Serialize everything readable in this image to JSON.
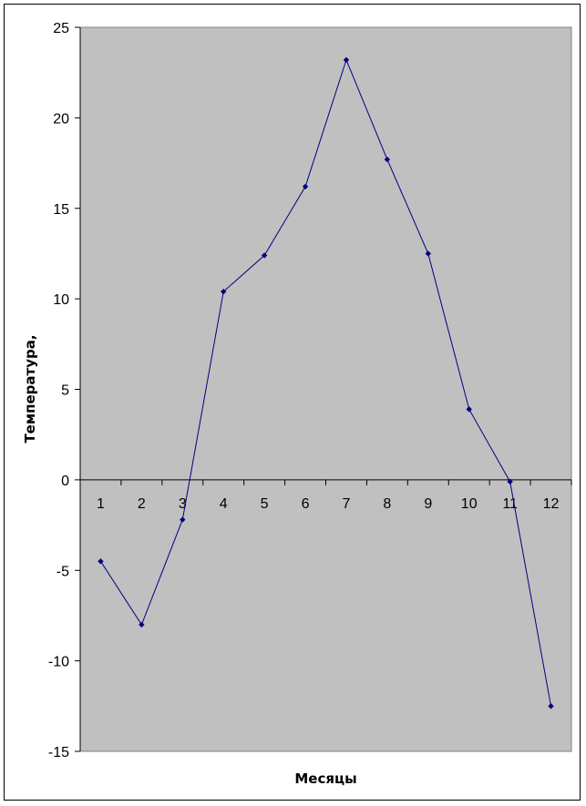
{
  "chart_data": {
    "type": "line",
    "title": "",
    "xlabel": "Месяцы",
    "ylabel": "Температура,",
    "categories": [
      "1",
      "2",
      "3",
      "4",
      "5",
      "6",
      "7",
      "8",
      "9",
      "10",
      "11",
      "12"
    ],
    "series": [
      {
        "values": [
          -4.5,
          -8.0,
          -2.2,
          10.4,
          12.4,
          16.2,
          23.2,
          17.7,
          12.5,
          3.9,
          -0.1,
          -12.5
        ]
      }
    ],
    "ylim": [
      -15,
      25
    ],
    "yticks": [
      "25",
      "20",
      "15",
      "10",
      "5",
      "0",
      "-5",
      "-10",
      "-15"
    ],
    "grid": false,
    "legend": "none",
    "colors": {
      "plot_background": "#c0c0c0",
      "line": "#000080",
      "marker": "#000080"
    }
  }
}
